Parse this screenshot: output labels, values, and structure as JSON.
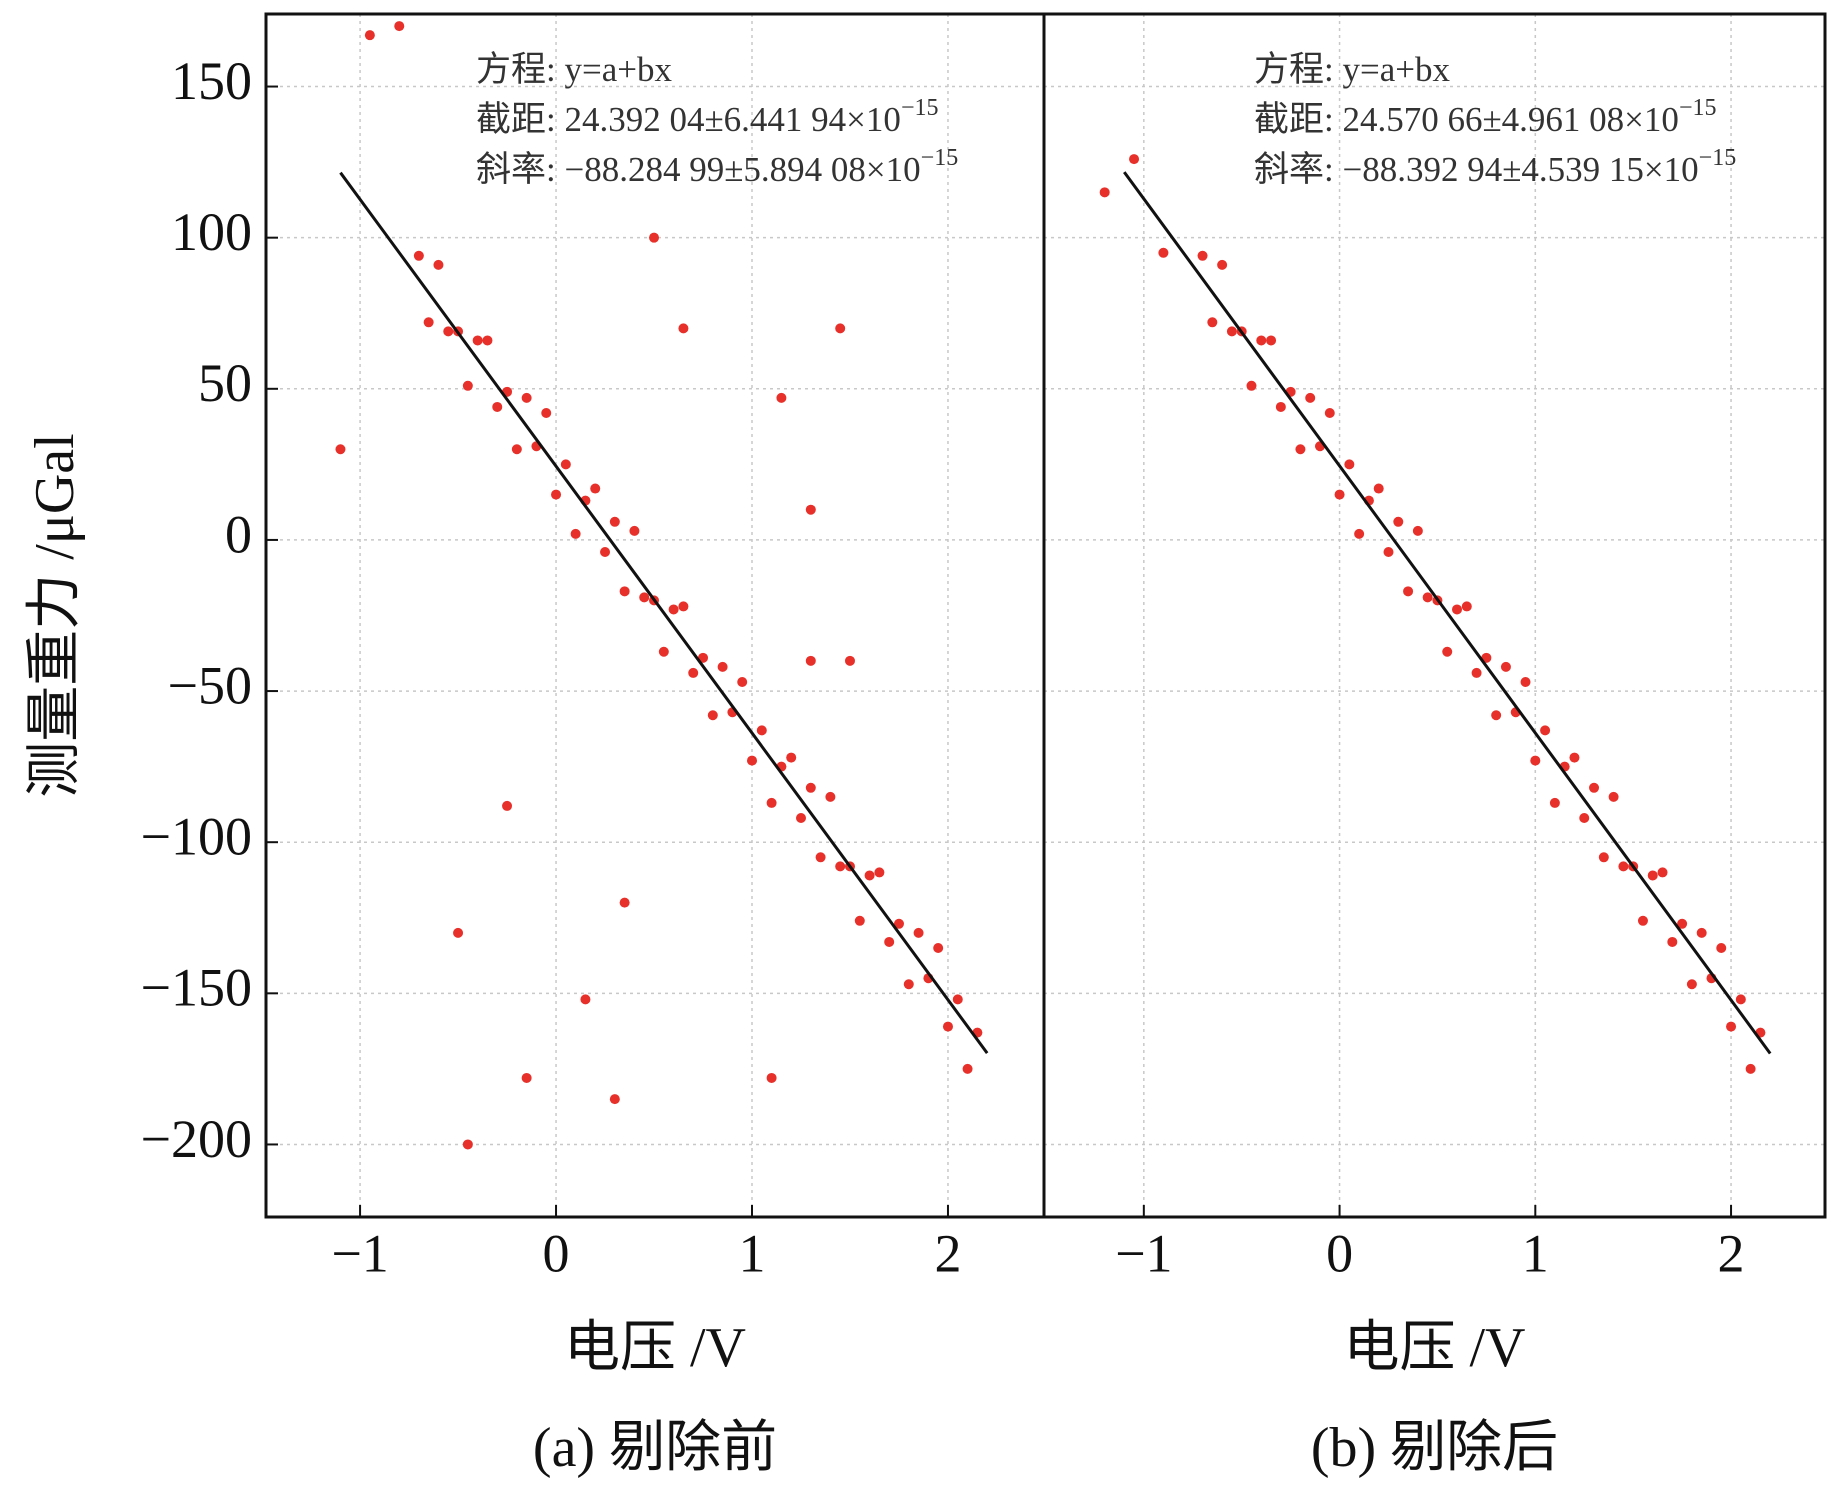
{
  "chart_data": [
    {
      "type": "scatter",
      "caption": "(a) 剔除前",
      "xlabel": "电压 /V",
      "ylabel": "测量重力 /μGal",
      "annotations": [
        {
          "text": "方程: y=a+bx"
        },
        {
          "text": "截距: 24.392 04±6.441 94×10",
          "exponent": "−15"
        },
        {
          "text": "斜率: −88.284 99±5.894 08×10",
          "exponent": "−15"
        }
      ],
      "xlim": [
        -1.48,
        2.49
      ],
      "ylim": [
        -224,
        174
      ],
      "xticks": [
        {
          "value": -1,
          "label": "−1"
        },
        0,
        1,
        2
      ],
      "yticks": [
        {
          "value": -200,
          "label": "−200"
        },
        {
          "value": -150,
          "label": "−150"
        },
        {
          "value": -100,
          "label": "−100"
        },
        {
          "value": -50,
          "label": "−50"
        },
        0,
        50,
        100,
        150
      ],
      "grid": true,
      "color": "#e8302a",
      "x": [
        -0.7,
        -0.65,
        -0.6,
        -0.55,
        -0.5,
        -0.45,
        -0.4,
        -0.35,
        -0.3,
        -0.25,
        -0.2,
        -0.15,
        -0.1,
        -0.05,
        0,
        0.05,
        0.1,
        0.15,
        0.2,
        0.25,
        0.3,
        0.35,
        0.4,
        0.45,
        0.5,
        0.55,
        0.6,
        0.65,
        0.7,
        0.75,
        0.8,
        0.85,
        0.9,
        0.95,
        1.0,
        1.05,
        1.1,
        1.15,
        1.2,
        1.25,
        1.3,
        1.35,
        1.4,
        1.45,
        1.5,
        1.55,
        1.6,
        1.65,
        1.7,
        1.75,
        1.8,
        1.85,
        1.9,
        1.95,
        2.0,
        2.05,
        2.1,
        2.15,
        -1.1,
        -0.95,
        -0.8,
        0.5,
        0.65,
        1.45,
        1.15,
        1.3,
        0.3,
        -0.15,
        -0.45,
        -0.5,
        0.15,
        1.1,
        -0.25,
        0.35,
        1.5,
        1.3
      ],
      "values": [
        94,
        72,
        91,
        69,
        69,
        51,
        66,
        66,
        44,
        49,
        30,
        47,
        31,
        42,
        15,
        25,
        2,
        13,
        17,
        -4,
        6,
        -17,
        3,
        -19,
        -20,
        -37,
        -23,
        -22,
        -44,
        -39,
        -58,
        -42,
        -57,
        -47,
        -73,
        -63,
        -87,
        -75,
        -72,
        -92,
        -82,
        -105,
        -85,
        -108,
        -108,
        -126,
        -111,
        -110,
        -133,
        -127,
        -147,
        -130,
        -145,
        -135,
        -161,
        -152,
        -175,
        -163,
        30,
        167,
        170,
        100,
        70,
        70,
        47,
        10,
        -185,
        -178,
        -200,
        -130,
        -152,
        -178,
        -88,
        -120,
        -40,
        -40
      ],
      "fit": {
        "color": "#111111",
        "x": [
          -1.1,
          2.2
        ],
        "values": [
          121.5,
          -169.8
        ]
      }
    },
    {
      "type": "scatter",
      "caption": "(b) 剔除后",
      "xlabel": "电压 /V",
      "annotations": [
        {
          "text": "方程: y=a+bx"
        },
        {
          "text": "截距: 24.570 66±4.961 08×10",
          "exponent": "−15"
        },
        {
          "text": "斜率: −88.392 94±4.539 15×10",
          "exponent": "−15"
        }
      ],
      "xlim": [
        -1.51,
        2.48
      ],
      "xticks": [
        {
          "value": -1,
          "label": "−1"
        },
        0,
        1,
        2
      ],
      "grid": true,
      "color": "#e8302a",
      "x": [
        -0.7,
        -0.65,
        -0.6,
        -0.55,
        -0.5,
        -0.45,
        -0.4,
        -0.35,
        -0.3,
        -0.25,
        -0.2,
        -0.15,
        -0.1,
        -0.05,
        0,
        0.05,
        0.1,
        0.15,
        0.2,
        0.25,
        0.3,
        0.35,
        0.4,
        0.45,
        0.5,
        0.55,
        0.6,
        0.65,
        0.7,
        0.75,
        0.8,
        0.85,
        0.9,
        0.95,
        1.0,
        1.05,
        1.1,
        1.15,
        1.2,
        1.25,
        1.3,
        1.35,
        1.4,
        1.45,
        1.5,
        1.55,
        1.6,
        1.65,
        1.7,
        1.75,
        1.8,
        1.85,
        1.9,
        1.95,
        2.0,
        2.05,
        2.1,
        2.15,
        -1.2,
        -1.05,
        -0.9
      ],
      "values": [
        94,
        72,
        91,
        69,
        69,
        51,
        66,
        66,
        44,
        49,
        30,
        47,
        31,
        42,
        15,
        25,
        2,
        13,
        17,
        -4,
        6,
        -17,
        3,
        -19,
        -20,
        -37,
        -23,
        -22,
        -44,
        -39,
        -58,
        -42,
        -57,
        -47,
        -73,
        -63,
        -87,
        -75,
        -72,
        -92,
        -82,
        -105,
        -85,
        -108,
        -108,
        -126,
        -111,
        -110,
        -133,
        -127,
        -147,
        -130,
        -145,
        -135,
        -161,
        -152,
        -175,
        -163,
        115,
        126,
        95
      ],
      "fit": {
        "color": "#111111",
        "x": [
          -1.1,
          2.2
        ],
        "values": [
          121.7,
          -169.9
        ]
      }
    }
  ]
}
